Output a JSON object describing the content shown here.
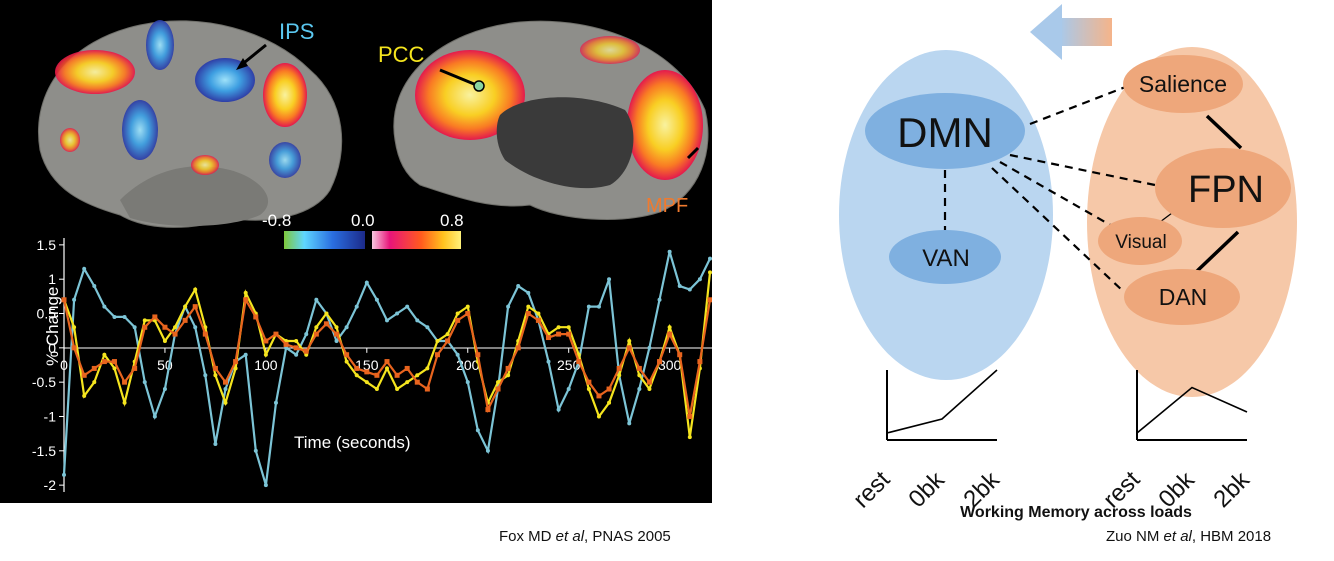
{
  "left_figure": {
    "brain_labels": {
      "ips": "IPS",
      "pcc": "PCC",
      "mpf": "MPF"
    },
    "colorbar": {
      "ticks": [
        "-0.8",
        "0.0",
        "0.8"
      ]
    },
    "chart_data": {
      "type": "line",
      "ylabel": "% Change",
      "xlabel": "Time (seconds)",
      "xlim": [
        0,
        320
      ],
      "ylim": [
        -2.1,
        1.6
      ],
      "y_ticks": [
        "1.5",
        "1",
        "0.5",
        "0",
        "-0.5",
        "-1",
        "-1.5",
        "-2"
      ],
      "x_ticks": [
        "0",
        "50",
        "100",
        "150",
        "200",
        "250",
        "300"
      ],
      "colors": {
        "blue": "#7cc4d6",
        "yellow": "#f5e51e",
        "orange": "#e8641e"
      },
      "series": [
        {
          "color": "blue",
          "x": [
            0,
            5,
            10,
            15,
            20,
            25,
            30,
            35,
            40,
            45,
            50,
            55,
            60,
            65,
            70,
            75,
            80,
            85,
            90,
            95,
            100,
            105,
            110,
            115,
            120,
            125,
            130,
            135,
            140,
            145,
            150,
            155,
            160,
            165,
            170,
            175,
            180,
            185,
            190,
            195,
            200,
            205,
            210,
            215,
            220,
            225,
            230,
            235,
            240,
            245,
            250,
            255,
            260,
            265,
            270,
            275,
            280,
            285,
            290,
            295,
            300,
            305,
            310,
            315,
            320
          ],
          "y": [
            -1.85,
            0.7,
            1.15,
            0.9,
            0.6,
            0.45,
            0.45,
            0.3,
            -0.5,
            -1.0,
            -0.6,
            0.2,
            0.6,
            0.3,
            -0.4,
            -1.4,
            -0.6,
            -0.2,
            -0.1,
            -1.5,
            -2.0,
            -0.8,
            0.0,
            -0.1,
            0.2,
            0.7,
            0.5,
            0.1,
            0.3,
            0.6,
            0.95,
            0.7,
            0.4,
            0.5,
            0.6,
            0.4,
            0.3,
            0.1,
            0.1,
            -0.1,
            -0.5,
            -1.2,
            -1.5,
            -0.6,
            0.6,
            0.9,
            0.8,
            0.4,
            -0.2,
            -0.9,
            -0.6,
            -0.2,
            0.6,
            0.6,
            1.0,
            -0.4,
            -1.1,
            -0.6,
            0.0,
            0.7,
            1.4,
            0.9,
            0.85,
            1.0,
            1.3
          ]
        },
        {
          "color": "yellow",
          "x": [
            0,
            5,
            10,
            15,
            20,
            25,
            30,
            35,
            40,
            45,
            50,
            55,
            60,
            65,
            70,
            75,
            80,
            85,
            90,
            95,
            100,
            105,
            110,
            115,
            120,
            125,
            130,
            135,
            140,
            145,
            150,
            155,
            160,
            165,
            170,
            175,
            180,
            185,
            190,
            195,
            200,
            205,
            210,
            215,
            220,
            225,
            230,
            235,
            240,
            245,
            250,
            255,
            260,
            265,
            270,
            275,
            280,
            285,
            290,
            295,
            300,
            305,
            310,
            315,
            320
          ],
          "y": [
            0.7,
            0.3,
            -0.7,
            -0.5,
            -0.1,
            -0.3,
            -0.8,
            -0.2,
            0.4,
            0.4,
            0.1,
            0.3,
            0.6,
            0.85,
            0.3,
            -0.4,
            -0.8,
            -0.3,
            0.8,
            0.5,
            -0.1,
            0.2,
            0.1,
            0.1,
            -0.1,
            0.3,
            0.5,
            0.3,
            -0.2,
            -0.4,
            -0.5,
            -0.6,
            -0.3,
            -0.6,
            -0.5,
            -0.4,
            -0.3,
            0.1,
            0.2,
            0.5,
            0.6,
            -0.2,
            -0.8,
            -0.5,
            -0.4,
            0.1,
            0.6,
            0.5,
            0.2,
            0.3,
            0.3,
            -0.1,
            -0.6,
            -1.0,
            -0.8,
            -0.4,
            0.1,
            -0.4,
            -0.6,
            -0.2,
            0.3,
            -0.1,
            -1.3,
            -0.3,
            1.1
          ]
        },
        {
          "color": "orange",
          "x": [
            0,
            5,
            10,
            15,
            20,
            25,
            30,
            35,
            40,
            45,
            50,
            55,
            60,
            65,
            70,
            75,
            80,
            85,
            90,
            95,
            100,
            105,
            110,
            115,
            120,
            125,
            130,
            135,
            140,
            145,
            150,
            155,
            160,
            165,
            170,
            175,
            180,
            185,
            190,
            195,
            200,
            205,
            210,
            215,
            220,
            225,
            230,
            235,
            240,
            245,
            250,
            255,
            260,
            265,
            270,
            275,
            280,
            285,
            290,
            295,
            300,
            305,
            310,
            315,
            320
          ],
          "y": [
            0.7,
            0.0,
            -0.4,
            -0.3,
            -0.2,
            -0.2,
            -0.5,
            -0.3,
            0.3,
            0.45,
            0.3,
            0.2,
            0.4,
            0.6,
            0.2,
            -0.3,
            -0.5,
            -0.2,
            0.7,
            0.45,
            0.1,
            0.2,
            0.05,
            0.0,
            -0.05,
            0.2,
            0.35,
            0.2,
            -0.1,
            -0.3,
            -0.35,
            -0.4,
            -0.2,
            -0.4,
            -0.3,
            -0.5,
            -0.6,
            -0.1,
            0.1,
            0.4,
            0.5,
            -0.1,
            -0.9,
            -0.6,
            -0.3,
            0.0,
            0.5,
            0.4,
            0.15,
            0.2,
            0.2,
            -0.2,
            -0.5,
            -0.7,
            -0.6,
            -0.3,
            0.0,
            -0.3,
            -0.5,
            -0.2,
            0.2,
            -0.1,
            -1.0,
            -0.2,
            0.7
          ]
        }
      ]
    }
  },
  "right_figure": {
    "nodes": {
      "dmn": "DMN",
      "van": "VAN",
      "salience": "Salience",
      "fpn": "FPN",
      "visual": "Visual",
      "dan": "DAN"
    },
    "mini_charts": [
      {
        "type": "line",
        "categories": [
          "rest",
          "0bk",
          "2bk"
        ],
        "values": [
          0.1,
          0.3,
          1.0
        ]
      },
      {
        "type": "line",
        "categories": [
          "rest",
          "0bk",
          "2bk"
        ],
        "values": [
          0.1,
          0.75,
          0.4
        ]
      }
    ],
    "axis_title": "Working Memory across loads"
  },
  "captions": {
    "left": {
      "authors": "Fox MD ",
      "etal": "et al",
      "source": ", PNAS 2005"
    },
    "right": {
      "authors": "Zuo NM ",
      "etal": "et al",
      "source": ", HBM 2018"
    }
  }
}
